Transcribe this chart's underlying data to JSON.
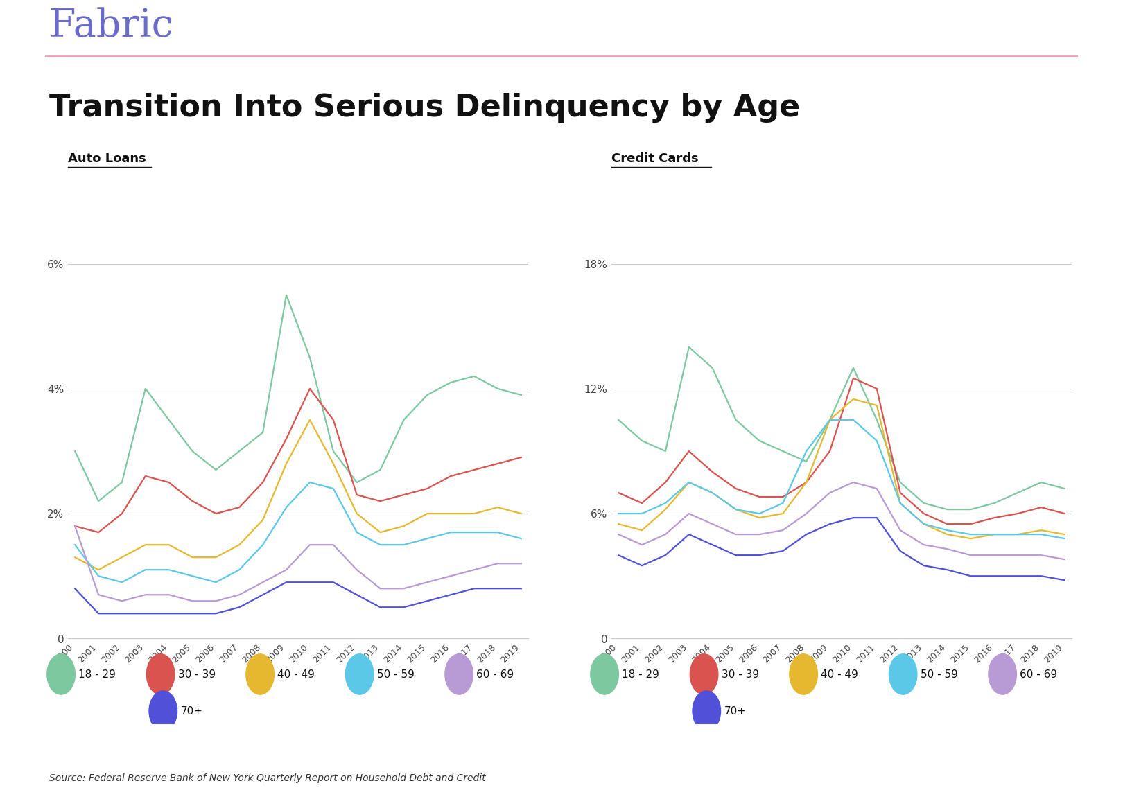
{
  "title": "Transition Into Serious Delinquency by Age",
  "fabric_color": "#6b6bcc",
  "header_line_color": "#f8a0b8",
  "source_text": "Source: Federal Reserve Bank of New York Quarterly Report on Household Debt and Credit",
  "auto_loans_label": "Auto Loans",
  "credit_cards_label": "Credit Cards",
  "years": [
    2000,
    2001,
    2002,
    2003,
    2004,
    2005,
    2006,
    2007,
    2008,
    2009,
    2010,
    2011,
    2012,
    2013,
    2014,
    2015,
    2016,
    2017,
    2018,
    2019
  ],
  "age_groups": [
    "18-29",
    "30-39",
    "40-49",
    "50-59",
    "60-69",
    "70+"
  ],
  "colors": {
    "18-29": "#7ec8a0",
    "30-39": "#d9534f",
    "40-49": "#e6b830",
    "50-59": "#5bc8e8",
    "60-69": "#b89ad4",
    "70+": "#5050d8"
  },
  "auto_loans": {
    "18-29": [
      3.0,
      2.2,
      2.5,
      4.0,
      3.5,
      3.0,
      2.7,
      3.0,
      3.3,
      5.5,
      4.5,
      3.0,
      2.5,
      2.7,
      3.5,
      3.9,
      4.1,
      4.2,
      4.0,
      3.9
    ],
    "30-39": [
      1.8,
      1.7,
      2.0,
      2.6,
      2.5,
      2.2,
      2.0,
      2.1,
      2.5,
      3.2,
      4.0,
      3.5,
      2.3,
      2.2,
      2.3,
      2.4,
      2.6,
      2.7,
      2.8,
      2.9
    ],
    "40-49": [
      1.3,
      1.1,
      1.3,
      1.5,
      1.5,
      1.3,
      1.3,
      1.5,
      1.9,
      2.8,
      3.5,
      2.8,
      2.0,
      1.7,
      1.8,
      2.0,
      2.0,
      2.0,
      2.1,
      2.0
    ],
    "50-59": [
      1.5,
      1.0,
      0.9,
      1.1,
      1.1,
      1.0,
      0.9,
      1.1,
      1.5,
      2.1,
      2.5,
      2.4,
      1.7,
      1.5,
      1.5,
      1.6,
      1.7,
      1.7,
      1.7,
      1.6
    ],
    "60-69": [
      1.8,
      0.7,
      0.6,
      0.7,
      0.7,
      0.6,
      0.6,
      0.7,
      0.9,
      1.1,
      1.5,
      1.5,
      1.1,
      0.8,
      0.8,
      0.9,
      1.0,
      1.1,
      1.2,
      1.2
    ],
    "70+": [
      0.8,
      0.4,
      0.4,
      0.4,
      0.4,
      0.4,
      0.4,
      0.5,
      0.7,
      0.9,
      0.9,
      0.9,
      0.7,
      0.5,
      0.5,
      0.6,
      0.7,
      0.8,
      0.8,
      0.8
    ]
  },
  "credit_cards": {
    "18-29": [
      10.5,
      9.5,
      9.0,
      14.0,
      13.0,
      10.5,
      9.5,
      9.0,
      8.5,
      10.5,
      13.0,
      10.5,
      7.5,
      6.5,
      6.2,
      6.2,
      6.5,
      7.0,
      7.5,
      7.2
    ],
    "30-39": [
      7.0,
      6.5,
      7.5,
      9.0,
      8.0,
      7.2,
      6.8,
      6.8,
      7.5,
      9.0,
      12.5,
      12.0,
      7.0,
      6.0,
      5.5,
      5.5,
      5.8,
      6.0,
      6.3,
      6.0
    ],
    "40-49": [
      5.5,
      5.2,
      6.2,
      7.5,
      7.0,
      6.2,
      5.8,
      6.0,
      7.5,
      10.5,
      11.5,
      11.2,
      6.5,
      5.5,
      5.0,
      4.8,
      5.0,
      5.0,
      5.2,
      5.0
    ],
    "50-59": [
      6.0,
      6.0,
      6.5,
      7.5,
      7.0,
      6.2,
      6.0,
      6.5,
      9.0,
      10.5,
      10.5,
      9.5,
      6.5,
      5.5,
      5.2,
      5.0,
      5.0,
      5.0,
      5.0,
      4.8
    ],
    "60-69": [
      5.0,
      4.5,
      5.0,
      6.0,
      5.5,
      5.0,
      5.0,
      5.2,
      6.0,
      7.0,
      7.5,
      7.2,
      5.2,
      4.5,
      4.3,
      4.0,
      4.0,
      4.0,
      4.0,
      3.8
    ],
    "70+": [
      4.0,
      3.5,
      4.0,
      5.0,
      4.5,
      4.0,
      4.0,
      4.2,
      5.0,
      5.5,
      5.8,
      5.8,
      4.2,
      3.5,
      3.3,
      3.0,
      3.0,
      3.0,
      3.0,
      2.8
    ]
  },
  "auto_ylim": [
    0,
    7
  ],
  "auto_yticks": [
    0,
    2,
    4,
    6
  ],
  "auto_ytick_labels": [
    "0",
    "2%",
    "4%",
    "6%"
  ],
  "cc_ylim": [
    0,
    21
  ],
  "cc_yticks": [
    0,
    6,
    12,
    18
  ],
  "cc_ytick_labels": [
    "0",
    "6%",
    "12%",
    "18%"
  ],
  "legend_labels": [
    "18 - 29",
    "30 - 39",
    "40 - 49",
    "50 - 59",
    "60 - 69",
    "70+"
  ],
  "background_color": "#ffffff"
}
